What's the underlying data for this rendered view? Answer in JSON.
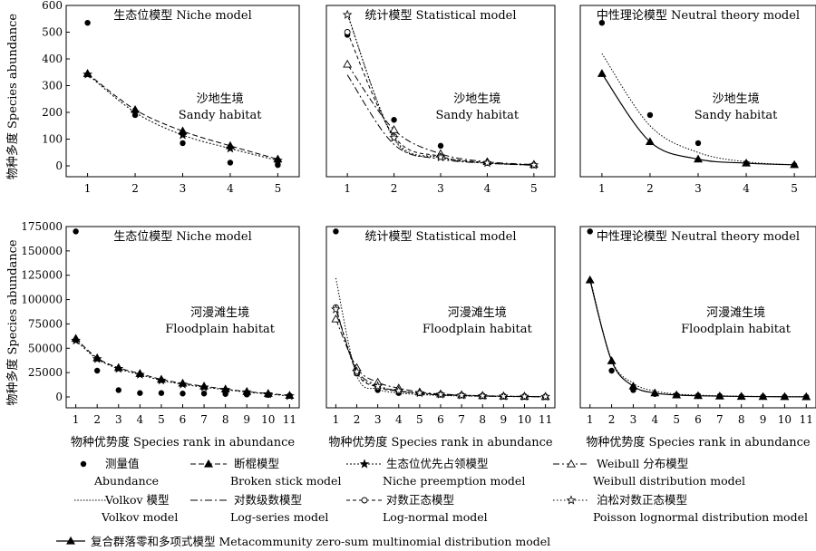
{
  "chart_data": [
    {
      "type": "line",
      "title": "生态位模型 Niche model",
      "habitat": [
        "沙地生境",
        "Sandy habitat"
      ],
      "ylabel": "物种多度 Species abundance",
      "xlabel": "",
      "x": [
        1,
        2,
        3,
        4,
        5
      ],
      "xticks": [
        "1",
        "2",
        "3",
        "4",
        "5"
      ],
      "ylim": [
        0,
        600
      ],
      "yticks": [
        "0",
        "100",
        "200",
        "300",
        "400",
        "500",
        "600"
      ],
      "series": [
        {
          "key": "abundance",
          "values": [
            535,
            190,
            85,
            12,
            3
          ]
        },
        {
          "key": "broken_stick",
          "values": [
            345,
            210,
            130,
            75,
            25
          ]
        },
        {
          "key": "niche_preemption",
          "values": [
            342,
            200,
            115,
            65,
            20
          ]
        }
      ]
    },
    {
      "type": "line",
      "title": "统计模型 Statistical model",
      "habitat": [
        "沙地生境",
        "Sandy habitat"
      ],
      "ylabel": "",
      "xlabel": "",
      "x": [
        1,
        2,
        3,
        4,
        5
      ],
      "xticks": [
        "1",
        "2",
        "3",
        "4",
        "5"
      ],
      "ylim": [
        0,
        600
      ],
      "yticks": [],
      "series": [
        {
          "key": "abundance",
          "values": [
            490,
            172,
            75,
            12,
            3
          ]
        },
        {
          "key": "weibull",
          "values": [
            380,
            135,
            45,
            15,
            5
          ]
        },
        {
          "key": "volkov",
          "values": [
            570,
            100,
            30,
            10,
            3
          ]
        },
        {
          "key": "log_series",
          "values": [
            340,
            80,
            25,
            10,
            2
          ]
        },
        {
          "key": "log_normal",
          "values": [
            500,
            110,
            35,
            12,
            3
          ]
        },
        {
          "key": "poisson_lognormal",
          "values": [
            565,
            105,
            32,
            11,
            3
          ]
        }
      ]
    },
    {
      "type": "line",
      "title": "中性理论模型 Neutral theory model",
      "habitat": [
        "沙地生境",
        "Sandy habitat"
      ],
      "ylabel": "",
      "xlabel": "",
      "x": [
        1,
        2,
        3,
        4,
        5
      ],
      "xticks": [
        "1",
        "2",
        "3",
        "4",
        "5"
      ],
      "ylim": [
        0,
        600
      ],
      "yticks": [],
      "series": [
        {
          "key": "abundance",
          "values": [
            535,
            190,
            85,
            10,
            3
          ]
        },
        {
          "key": "volkov",
          "values": [
            420,
            150,
            50,
            15,
            4
          ]
        },
        {
          "key": "metacommunity",
          "values": [
            345,
            90,
            25,
            10,
            4
          ]
        }
      ]
    },
    {
      "type": "line",
      "title": "生态位模型 Niche model",
      "habitat": [
        "河漫滩生境",
        "Floodplain habitat"
      ],
      "ylabel": "物种多度 Species abundance",
      "xlabel": "物种优势度 Species rank in abundance",
      "x": [
        1,
        2,
        3,
        4,
        5,
        6,
        7,
        8,
        9,
        10,
        11
      ],
      "xticks": [
        "1",
        "2",
        "3",
        "4",
        "5",
        "6",
        "7",
        "8",
        "9",
        "10",
        "11"
      ],
      "ylim": [
        0,
        175000
      ],
      "yticks": [
        "0",
        "25000",
        "50000",
        "75000",
        "100000",
        "125000",
        "150000",
        "175000"
      ],
      "series": [
        {
          "key": "abundance",
          "values": [
            170000,
            27000,
            7000,
            4000,
            4000,
            3500,
            3500,
            3000,
            2500,
            2000,
            1500
          ]
        },
        {
          "key": "broken_stick",
          "values": [
            60000,
            40000,
            30000,
            24000,
            18000,
            14000,
            11000,
            8000,
            5500,
            3500,
            1500
          ]
        },
        {
          "key": "niche_preemption",
          "values": [
            58000,
            39000,
            29000,
            23000,
            17000,
            13000,
            10000,
            7500,
            5000,
            3000,
            1000
          ]
        }
      ]
    },
    {
      "type": "line",
      "title": "统计模型 Statistical model",
      "habitat": [
        "河漫滩生境",
        "Floodplain habitat"
      ],
      "ylabel": "",
      "xlabel": "物种优势度 Species rank in abundance",
      "x": [
        1,
        2,
        3,
        4,
        5,
        6,
        7,
        8,
        9,
        10,
        11
      ],
      "xticks": [
        "1",
        "2",
        "3",
        "4",
        "5",
        "6",
        "7",
        "8",
        "9",
        "10",
        "11"
      ],
      "ylim": [
        0,
        175000
      ],
      "yticks": [],
      "series": [
        {
          "key": "abundance",
          "values": [
            170000,
            24000,
            7000,
            4000,
            4000,
            3000,
            2000,
            1500,
            1000,
            800,
            500
          ]
        },
        {
          "key": "weibull",
          "values": [
            80000,
            30000,
            15000,
            9000,
            5000,
            3000,
            2000,
            1200,
            800,
            500,
            300
          ]
        },
        {
          "key": "volkov",
          "values": [
            122000,
            22000,
            8000,
            4000,
            2500,
            1500,
            1000,
            700,
            500,
            300,
            200
          ]
        },
        {
          "key": "log_series",
          "values": [
            90000,
            28000,
            12000,
            6000,
            3500,
            2000,
            1200,
            800,
            500,
            300,
            200
          ]
        },
        {
          "key": "log_normal",
          "values": [
            92000,
            25000,
            10000,
            6000,
            4000,
            2500,
            1800,
            1200,
            800,
            500,
            300
          ]
        },
        {
          "key": "poisson_lognormal",
          "values": [
            90000,
            26000,
            11000,
            6500,
            4000,
            2600,
            1700,
            1100,
            700,
            400,
            300
          ]
        }
      ]
    },
    {
      "type": "line",
      "title": "中性理论模型 Neutral theory model",
      "habitat": [
        "河漫滩生境",
        "Floodplain habitat"
      ],
      "ylabel": "",
      "xlabel": "物种优势度 Species rank in abundance",
      "x": [
        1,
        2,
        3,
        4,
        5,
        6,
        7,
        8,
        9,
        10,
        11
      ],
      "xticks": [
        "1",
        "2",
        "3",
        "4",
        "5",
        "6",
        "7",
        "8",
        "9",
        "10",
        "11"
      ],
      "ylim": [
        0,
        175000
      ],
      "yticks": [],
      "series": [
        {
          "key": "abundance",
          "values": [
            170000,
            27000,
            7000,
            3000,
            2000,
            1500,
            1000,
            500,
            300,
            200,
            100
          ]
        },
        {
          "key": "volkov",
          "values": [
            122000,
            38000,
            14000,
            6000,
            3000,
            1800,
            1200,
            800,
            500,
            300,
            200
          ]
        },
        {
          "key": "metacommunity",
          "values": [
            120000,
            37000,
            11000,
            4000,
            2000,
            1200,
            800,
            500,
            300,
            200,
            100
          ]
        }
      ]
    }
  ],
  "legend": [
    {
      "key": "abundance",
      "zh": "测量值",
      "en": "Abundance"
    },
    {
      "key": "broken_stick",
      "zh": "断棍模型",
      "en": "Broken stick model"
    },
    {
      "key": "niche_preemption",
      "zh": "生态位优先占领模型",
      "en": "Niche preemption model"
    },
    {
      "key": "weibull",
      "zh": "Weibull 分布模型",
      "en": "Weibull distribution model"
    },
    {
      "key": "volkov",
      "zh": "Volkov 模型",
      "en": "Volkov model"
    },
    {
      "key": "log_series",
      "zh": "对数级数模型",
      "en": "Log-series model"
    },
    {
      "key": "log_normal",
      "zh": "对数正态模型",
      "en": "Log-normal model"
    },
    {
      "key": "poisson_lognormal",
      "zh": "泊松对数正态模型",
      "en": "Poisson lognormal distribution model"
    },
    {
      "key": "metacommunity",
      "zh": "复合群落零和多项式模型",
      "en": "Metacommunity zero-sum multinomial distribution model"
    }
  ]
}
